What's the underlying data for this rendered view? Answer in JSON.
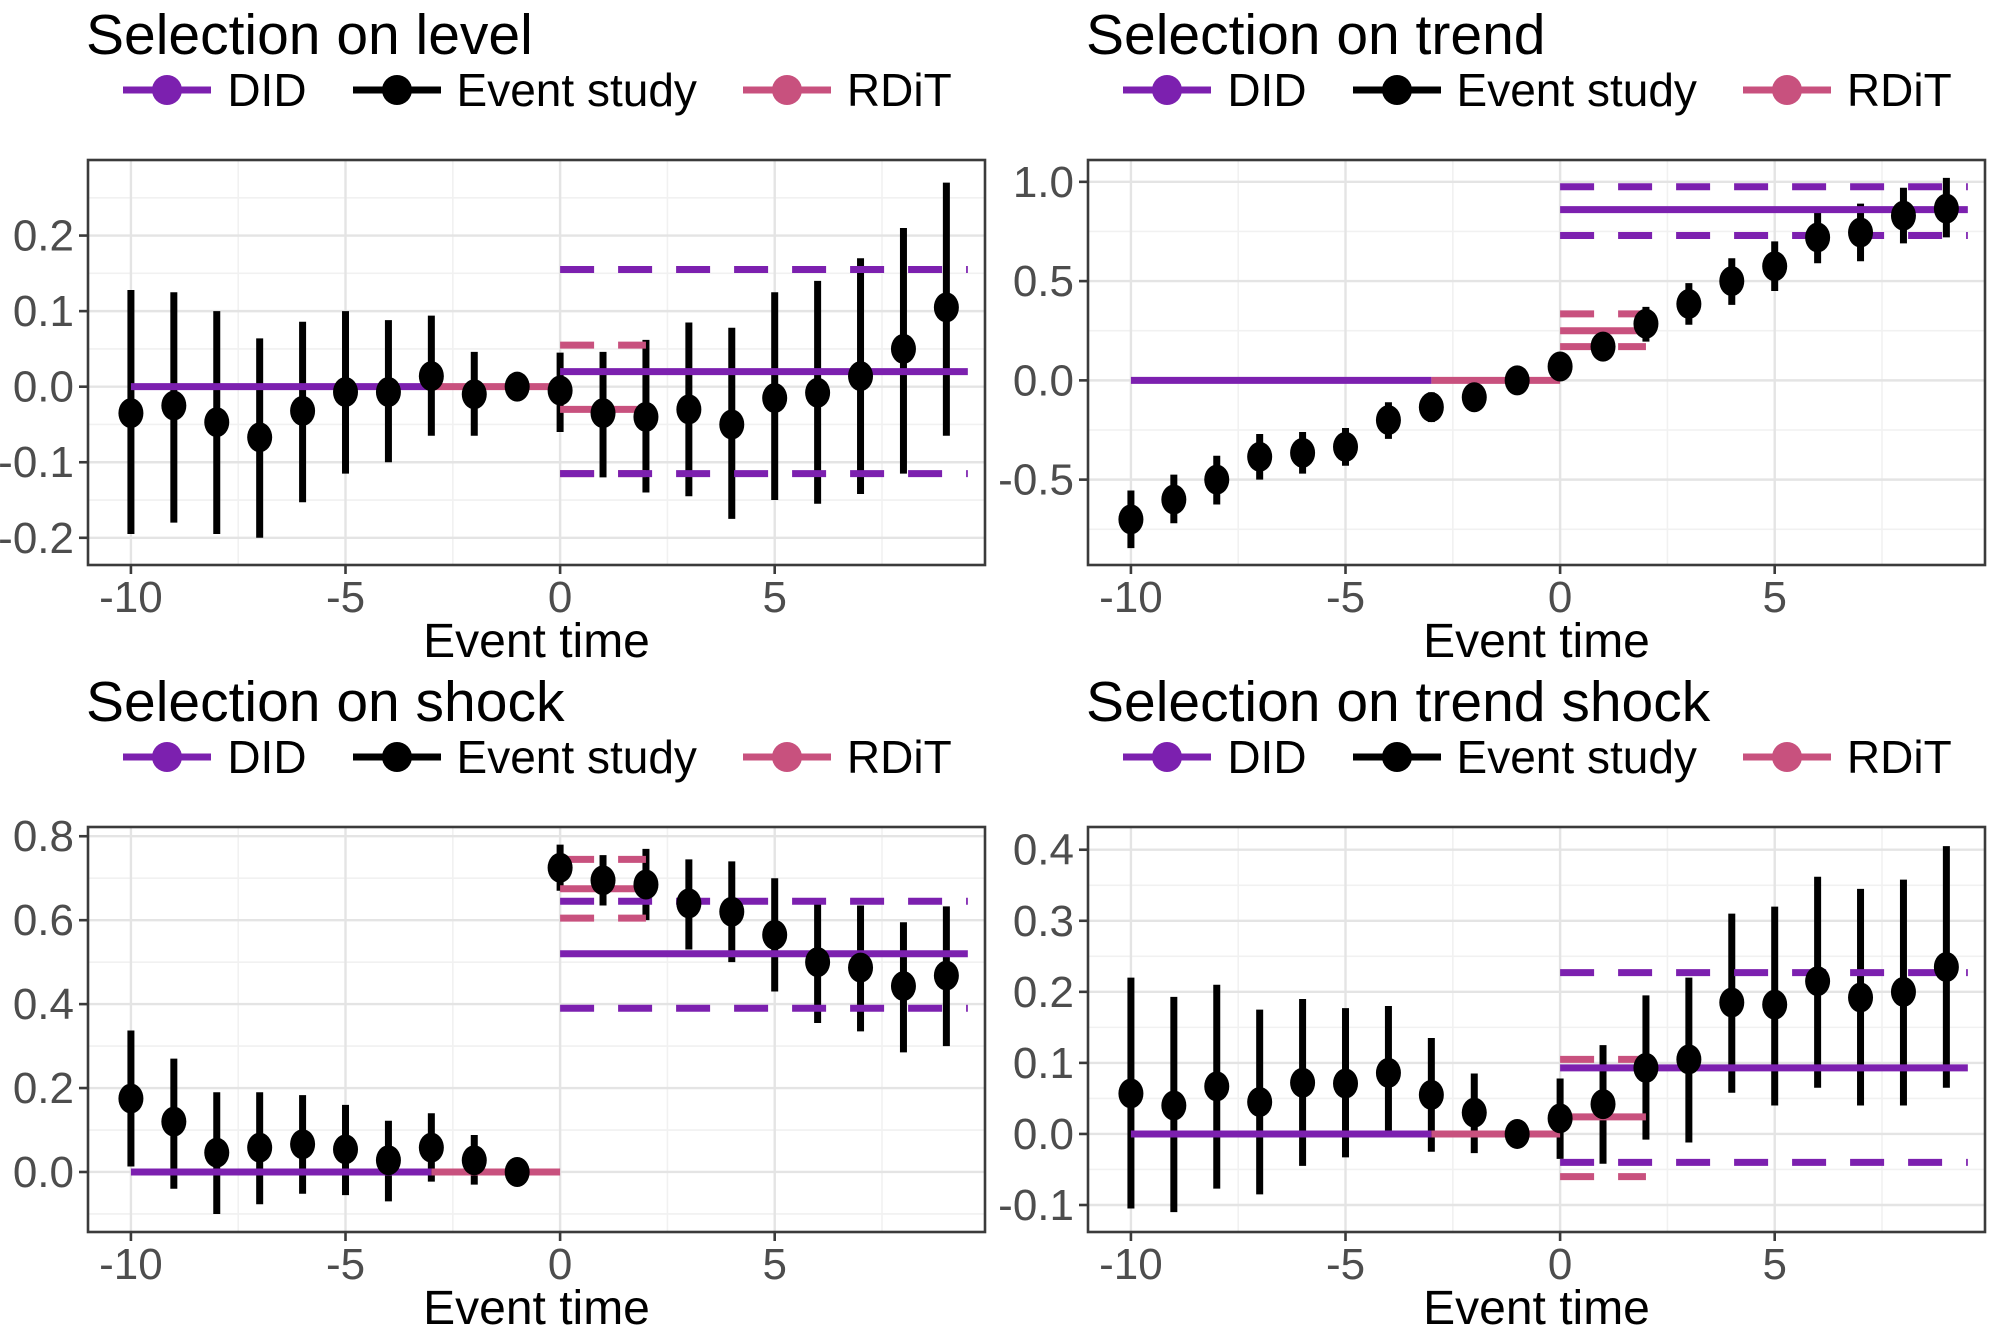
{
  "figure": {
    "xlabel": "Event time",
    "legend": {
      "did": "DID",
      "event_study": "Event study",
      "rdit": "RDiT"
    },
    "colors": {
      "did": "#7C20AF",
      "event_study": "#000000",
      "rdit": "#C8517E",
      "tick_text": "#4D4D4D",
      "axis_text": "#000000",
      "grid_major": "#E4E4E4",
      "grid_minor": "#F1F1F1",
      "panel_border": "#3B3B3B",
      "background": "#FFFFFF"
    }
  },
  "chart_data": [
    {
      "type": "pointrange",
      "title": "Selection on level",
      "xlabel": "Event time",
      "x_ticks": [
        -10,
        -5,
        0,
        5
      ],
      "x_tick_labels": [
        "-10",
        "-5",
        "0",
        "5"
      ],
      "x_minor": [
        -7.5,
        -2.5,
        2.5,
        7.5
      ],
      "xlim": [
        -11,
        9.9
      ],
      "y_ticks": [
        -0.2,
        -0.1,
        0,
        0.1,
        0.2
      ],
      "y_tick_labels": [
        "-0.2",
        "-0.1",
        "0.0",
        "0.1",
        "0.2"
      ],
      "y_minor": [
        -0.15,
        -0.05,
        0.05,
        0.15,
        0.25
      ],
      "ylim": [
        -0.236,
        0.3
      ],
      "event_study": {
        "x": [
          -10,
          -9,
          -8,
          -7,
          -6,
          -5,
          -4,
          -3,
          -2,
          -1,
          0,
          1,
          2,
          3,
          4,
          5,
          6,
          7,
          8,
          9
        ],
        "est": [
          -0.035,
          -0.025,
          -0.047,
          -0.067,
          -0.032,
          -0.007,
          -0.007,
          0.014,
          -0.01,
          0,
          -0.005,
          -0.035,
          -0.04,
          -0.03,
          -0.05,
          -0.015,
          -0.008,
          0.014,
          0.05,
          0.105
        ],
        "lo": [
          -0.195,
          -0.18,
          -0.195,
          -0.2,
          -0.153,
          -0.115,
          -0.1,
          -0.065,
          -0.065,
          null,
          -0.06,
          -0.12,
          -0.14,
          -0.145,
          -0.175,
          -0.15,
          -0.155,
          -0.142,
          -0.115,
          -0.065
        ],
        "hi": [
          0.128,
          0.125,
          0.1,
          0.064,
          0.086,
          0.1,
          0.088,
          0.094,
          0.046,
          null,
          0.045,
          0.046,
          0.062,
          0.085,
          0.078,
          0.125,
          0.14,
          0.17,
          0.21,
          0.27
        ],
        "ref_x": -1
      },
      "did": {
        "pre": {
          "x0": -10,
          "x1": -3,
          "y": 0
        },
        "post": {
          "x0": 0,
          "x1": 9.5,
          "est": 0.02,
          "lo": -0.115,
          "hi": 0.155
        }
      },
      "rdit": {
        "pre": {
          "x0": -3,
          "x1": 0,
          "y": 0
        },
        "post": {
          "x0": 0,
          "x1": 2,
          "est": -0.03,
          "lo": -0.115,
          "hi": 0.055
        }
      }
    },
    {
      "type": "pointrange",
      "title": "Selection on trend",
      "xlabel": "Event time",
      "x_ticks": [
        -10,
        -5,
        0,
        5
      ],
      "x_tick_labels": [
        "-10",
        "-5",
        "0",
        "5"
      ],
      "x_minor": [
        -7.5,
        -2.5,
        2.5,
        7.5
      ],
      "xlim": [
        -11,
        9.9
      ],
      "y_ticks": [
        -0.5,
        0,
        0.5,
        1.0
      ],
      "y_tick_labels": [
        "-0.5",
        "0.0",
        "0.5",
        "1.0"
      ],
      "y_minor": [
        -0.75,
        -0.25,
        0.25,
        0.75
      ],
      "ylim": [
        -0.93,
        1.11
      ],
      "event_study": {
        "x": [
          -10,
          -9,
          -8,
          -7,
          -6,
          -5,
          -4,
          -3,
          -2,
          -1,
          0,
          1,
          2,
          3,
          4,
          5,
          6,
          7,
          8,
          9
        ],
        "est": [
          -0.7,
          -0.6,
          -0.5,
          -0.385,
          -0.365,
          -0.335,
          -0.2,
          -0.135,
          -0.085,
          0,
          0.07,
          0.17,
          0.285,
          0.385,
          0.5,
          0.575,
          0.72,
          0.745,
          0.83,
          0.865
        ],
        "lo": [
          -0.845,
          -0.72,
          -0.625,
          -0.5,
          -0.47,
          -0.43,
          -0.295,
          -0.21,
          -0.14,
          null,
          0.015,
          0.1,
          0.195,
          0.28,
          0.38,
          0.45,
          0.59,
          0.6,
          0.69,
          0.72
        ],
        "hi": [
          -0.555,
          -0.475,
          -0.38,
          -0.27,
          -0.26,
          -0.24,
          -0.11,
          -0.06,
          -0.03,
          null,
          0.13,
          0.235,
          0.37,
          0.49,
          0.615,
          0.7,
          0.85,
          0.89,
          0.97,
          1.02
        ],
        "ref_x": -1
      },
      "did": {
        "pre": {
          "x0": -10,
          "x1": -3,
          "y": 0
        },
        "post": {
          "x0": 0,
          "x1": 9.5,
          "est": 0.86,
          "lo": 0.73,
          "hi": 0.975
        }
      },
      "rdit": {
        "pre": {
          "x0": -3,
          "x1": 0,
          "y": 0
        },
        "post": {
          "x0": 0,
          "x1": 2,
          "est": 0.25,
          "lo": 0.17,
          "hi": 0.335
        }
      }
    },
    {
      "type": "pointrange",
      "title": "Selection on shock",
      "xlabel": "Event time",
      "x_ticks": [
        -10,
        -5,
        0,
        5
      ],
      "x_tick_labels": [
        "-10",
        "-5",
        "0",
        "5"
      ],
      "x_minor": [
        -7.5,
        -2.5,
        2.5,
        7.5
      ],
      "xlim": [
        -11,
        9.9
      ],
      "y_ticks": [
        0,
        0.2,
        0.4,
        0.6,
        0.8
      ],
      "y_tick_labels": [
        "0.0",
        "0.2",
        "0.4",
        "0.6",
        "0.8"
      ],
      "y_minor": [
        -0.1,
        0.1,
        0.3,
        0.5,
        0.7
      ],
      "ylim": [
        -0.143,
        0.822
      ],
      "event_study": {
        "x": [
          -10,
          -9,
          -8,
          -7,
          -6,
          -5,
          -4,
          -3,
          -2,
          -1,
          0,
          1,
          2,
          3,
          4,
          5,
          6,
          7,
          8,
          9
        ],
        "est": [
          0.175,
          0.12,
          0.046,
          0.058,
          0.066,
          0.054,
          0.028,
          0.058,
          0.028,
          0,
          0.725,
          0.695,
          0.685,
          0.64,
          0.62,
          0.565,
          0.5,
          0.487,
          0.443,
          0.468
        ],
        "lo": [
          0.013,
          -0.04,
          -0.1,
          -0.077,
          -0.052,
          -0.055,
          -0.07,
          -0.023,
          -0.03,
          null,
          0.67,
          0.635,
          0.6,
          0.53,
          0.5,
          0.43,
          0.355,
          0.335,
          0.285,
          0.3
        ],
        "hi": [
          0.337,
          0.27,
          0.19,
          0.19,
          0.183,
          0.16,
          0.122,
          0.14,
          0.088,
          null,
          0.78,
          0.755,
          0.77,
          0.745,
          0.74,
          0.7,
          0.645,
          0.635,
          0.595,
          0.633
        ],
        "ref_x": -1
      },
      "did": {
        "pre": {
          "x0": -10,
          "x1": -3,
          "y": 0
        },
        "post": {
          "x0": 0,
          "x1": 9.5,
          "est": 0.52,
          "lo": 0.39,
          "hi": 0.645
        }
      },
      "rdit": {
        "pre": {
          "x0": -3,
          "x1": 0,
          "y": 0
        },
        "post": {
          "x0": 0,
          "x1": 2,
          "est": 0.675,
          "lo": 0.605,
          "hi": 0.745
        }
      }
    },
    {
      "type": "pointrange",
      "title": "Selection on trend shock",
      "xlabel": "Event time",
      "x_ticks": [
        -10,
        -5,
        0,
        5
      ],
      "x_tick_labels": [
        "-10",
        "-5",
        "0",
        "5"
      ],
      "x_minor": [
        -7.5,
        -2.5,
        2.5,
        7.5
      ],
      "xlim": [
        -11,
        9.9
      ],
      "y_ticks": [
        -0.1,
        0,
        0.1,
        0.2,
        0.3,
        0.4
      ],
      "y_tick_labels": [
        "-0.1",
        "0.0",
        "0.1",
        "0.2",
        "0.3",
        "0.4"
      ],
      "y_minor": [
        -0.05,
        0.05,
        0.15,
        0.25,
        0.35
      ],
      "ylim": [
        -0.138,
        0.432
      ],
      "event_study": {
        "x": [
          -10,
          -9,
          -8,
          -7,
          -6,
          -5,
          -4,
          -3,
          -2,
          -1,
          0,
          1,
          2,
          3,
          4,
          5,
          6,
          7,
          8,
          9
        ],
        "est": [
          0.057,
          0.04,
          0.067,
          0.045,
          0.072,
          0.071,
          0.086,
          0.055,
          0.03,
          0,
          0.022,
          0.042,
          0.093,
          0.105,
          0.185,
          0.182,
          0.215,
          0.192,
          0.2,
          0.235
        ],
        "lo": [
          -0.105,
          -0.11,
          -0.077,
          -0.085,
          -0.045,
          -0.033,
          -0.005,
          -0.025,
          -0.027,
          null,
          -0.035,
          -0.042,
          -0.008,
          -0.012,
          0.058,
          0.04,
          0.065,
          0.04,
          0.04,
          0.065
        ],
        "hi": [
          0.22,
          0.193,
          0.21,
          0.175,
          0.19,
          0.177,
          0.18,
          0.135,
          0.085,
          null,
          0.078,
          0.125,
          0.195,
          0.22,
          0.31,
          0.32,
          0.362,
          0.345,
          0.358,
          0.405
        ],
        "ref_x": -1
      },
      "did": {
        "pre": {
          "x0": -10,
          "x1": -3,
          "y": 0
        },
        "post": {
          "x0": 0,
          "x1": 9.5,
          "est": 0.093,
          "lo": -0.04,
          "hi": 0.227
        }
      },
      "rdit": {
        "pre": {
          "x0": -3,
          "x1": 0,
          "y": 0
        },
        "post": {
          "x0": 0,
          "x1": 2,
          "est": 0.024,
          "lo": -0.06,
          "hi": 0.105
        }
      }
    }
  ]
}
